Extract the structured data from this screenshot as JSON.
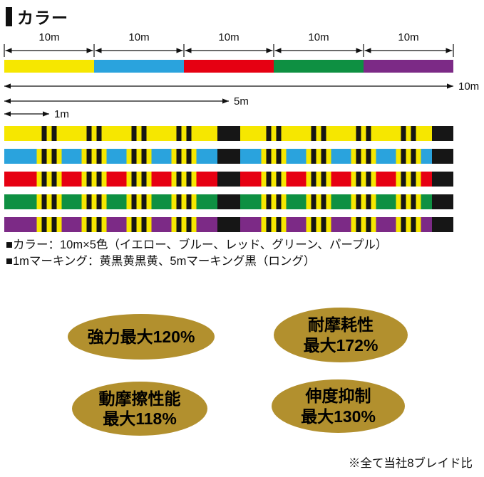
{
  "header": {
    "title": "カラー"
  },
  "diagram": {
    "meters_total": 10,
    "segments": [
      {
        "label": "10m",
        "color": "#f6e700"
      },
      {
        "label": "10m",
        "color": "#2aa3dd"
      },
      {
        "label": "10m",
        "color": "#e60012"
      },
      {
        "label": "10m",
        "color": "#0e9042"
      },
      {
        "label": "10m",
        "color": "#7c2a86"
      }
    ],
    "measures": [
      {
        "label": "10m",
        "meters": 10
      },
      {
        "label": "5m",
        "meters": 5
      },
      {
        "label": "1m",
        "meters": 1
      }
    ],
    "marking": {
      "black": "#161616",
      "yellow": "#f6e700",
      "pattern": [
        "yellow",
        "black",
        "yellow",
        "black",
        "yellow"
      ],
      "pattern_name": "黄黒黄黒黄",
      "long_mark_meters": [
        5,
        10
      ]
    }
  },
  "notes": [
    "■カラー：10m×5色（イエロー、ブルー、レッド、グリーン、パープル）",
    "■1mマーキング：黄黒黄黒黄、5mマーキング黒（ロング）"
  ],
  "badges": {
    "color": "#b2902e",
    "items": [
      {
        "lines": [
          "強力最大120%"
        ]
      },
      {
        "lines": [
          "耐摩耗性",
          "最大172%"
        ]
      },
      {
        "lines": [
          "動摩擦性能",
          "最大118%"
        ]
      },
      {
        "lines": [
          "伸度抑制",
          "最大130%"
        ]
      }
    ]
  },
  "footnote": "※全て当社8ブレイド比"
}
